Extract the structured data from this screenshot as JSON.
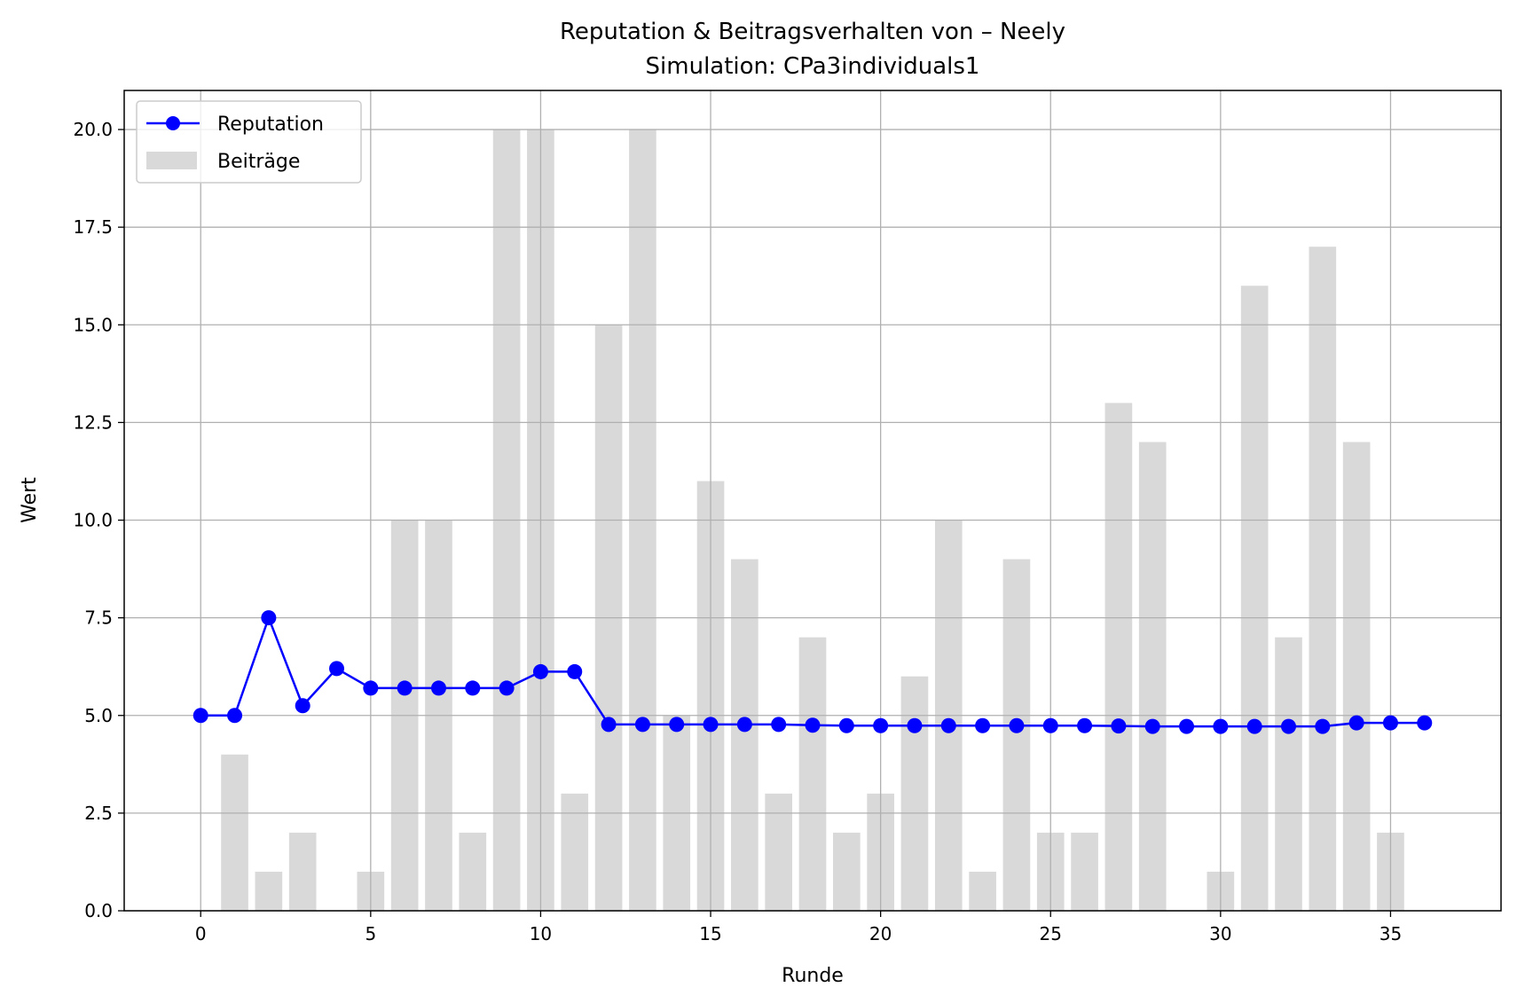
{
  "chart_data": {
    "type": "bar",
    "title": "Reputation & Beitragsverhalten von – Neely",
    "subtitle": "Simulation: CPa3individuals1",
    "xlabel": "Runde",
    "ylabel": "Wert",
    "xlim": [
      -2.25,
      38.25
    ],
    "ylim": [
      0,
      21
    ],
    "x_ticks": [
      0,
      5,
      10,
      15,
      20,
      25,
      30,
      35
    ],
    "y_ticks": [
      0.0,
      2.5,
      5.0,
      7.5,
      10.0,
      12.5,
      15.0,
      17.5,
      20.0
    ],
    "grid": true,
    "legend_position": "top-left",
    "x": [
      0,
      1,
      2,
      3,
      4,
      5,
      6,
      7,
      8,
      9,
      10,
      11,
      12,
      13,
      14,
      15,
      16,
      17,
      18,
      19,
      20,
      21,
      22,
      23,
      24,
      25,
      26,
      27,
      28,
      29,
      30,
      31,
      32,
      33,
      34,
      35,
      36
    ],
    "series": [
      {
        "name": "Reputation",
        "type": "line",
        "marker": "circle",
        "color": "#0000ff",
        "values": [
          5.0,
          5.0,
          7.5,
          5.25,
          6.2,
          5.7,
          5.7,
          5.7,
          5.7,
          5.7,
          6.12,
          6.12,
          4.77,
          4.77,
          4.77,
          4.77,
          4.77,
          4.77,
          4.75,
          4.74,
          4.74,
          4.74,
          4.74,
          4.74,
          4.74,
          4.74,
          4.74,
          4.73,
          4.72,
          4.72,
          4.72,
          4.72,
          4.72,
          4.72,
          4.81,
          4.81,
          4.81
        ]
      },
      {
        "name": "Beiträge",
        "type": "bar",
        "color": "#d9d9d9",
        "values": [
          0,
          4,
          1,
          2,
          0,
          1,
          10,
          10,
          2,
          20,
          20,
          3,
          15,
          20,
          5,
          11,
          9,
          3,
          7,
          2,
          3,
          6,
          10,
          1,
          9,
          2,
          2,
          13,
          12,
          0,
          1,
          16,
          7,
          17,
          12,
          2,
          0
        ]
      }
    ]
  }
}
